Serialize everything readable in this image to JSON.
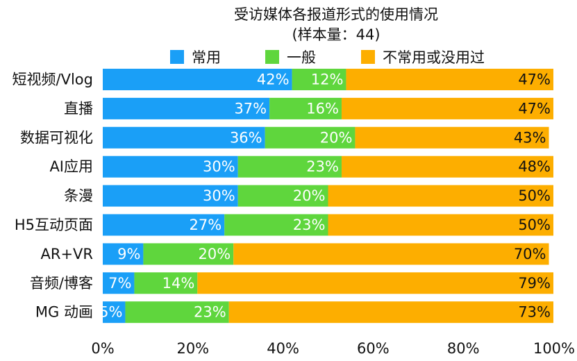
{
  "chart_data": {
    "type": "bar",
    "orientation": "horizontal",
    "stacked": true,
    "title": "受访媒体各报道形式的使用情况",
    "subtitle": "(样本量：44)",
    "legend_position": "top",
    "categories": [
      "短视频/Vlog",
      "直播",
      "数据可视化",
      "AI应用",
      "条漫",
      "H5互动页面",
      "AR+VR",
      "音频/博客",
      "MG 动画"
    ],
    "series": [
      {
        "name": "常用",
        "color": "#1a9ff7",
        "label_color": "#ffffff",
        "values": [
          42,
          37,
          36,
          30,
          30,
          27,
          9,
          7,
          5
        ],
        "labels": [
          "42%",
          "37%",
          "36%",
          "30%",
          "30%",
          "27%",
          "9%",
          "7%",
          "5%"
        ]
      },
      {
        "name": "一般",
        "color": "#5fd63d",
        "label_color": "#ffffff",
        "values": [
          12,
          16,
          20,
          23,
          20,
          23,
          20,
          14,
          23
        ],
        "labels": [
          "12%",
          "16%",
          "20%",
          "23%",
          "20%",
          "23%",
          "20%",
          "14%",
          "23%"
        ]
      },
      {
        "name": "不常用或没用过",
        "color": "#fdae00",
        "label_color": "#111111",
        "values": [
          47,
          47,
          43,
          48,
          50,
          50,
          70,
          79,
          73
        ],
        "labels": [
          "47%",
          "47%",
          "43%",
          "48%",
          "50%",
          "50%",
          "70%",
          "79%",
          "73%"
        ]
      }
    ],
    "xlim": [
      0,
      100
    ],
    "x_ticks": [
      "0%",
      "20%",
      "40%",
      "60%",
      "80%",
      "100%"
    ],
    "xlabel": "",
    "ylabel": "",
    "grid": false
  }
}
